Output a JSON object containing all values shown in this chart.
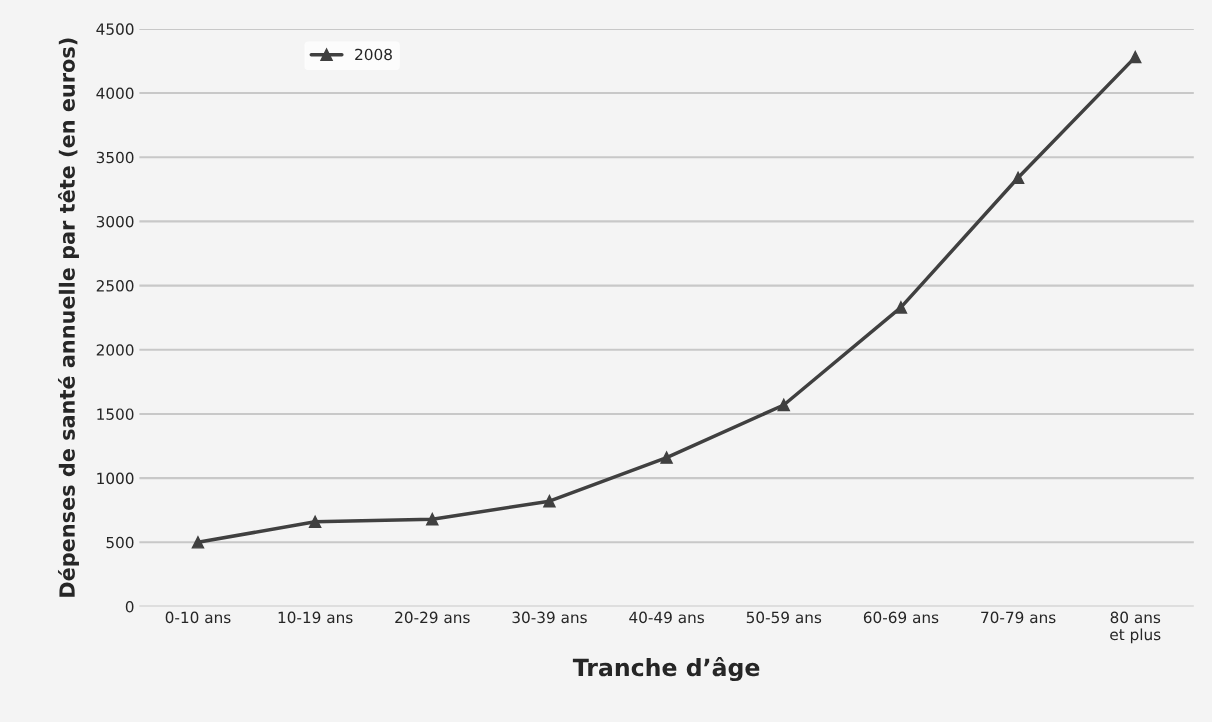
{
  "chart_data": {
    "type": "line",
    "xlabel": "Tranche d’âge",
    "ylabel": "Dépenses de santé annuelle par tête (en euros)",
    "categories": [
      "0-10 ans",
      "10-19 ans",
      "20-29 ans",
      "30-39 ans",
      "40-49 ans",
      "50-59 ans",
      "60-69 ans",
      "70-79 ans",
      "80 ans\net plus"
    ],
    "series": [
      {
        "name": "2008",
        "color": "#404040",
        "values": [
          500,
          660,
          680,
          820,
          1160,
          1570,
          2330,
          3340,
          4280
        ]
      }
    ],
    "ylim": [
      0,
      4500
    ],
    "yticks": [
      0,
      500,
      1000,
      1500,
      2000,
      2500,
      3000,
      3500,
      4000,
      4500
    ],
    "grid": "y",
    "legend": "top left",
    "marker": "triangle",
    "line_style": "solid"
  }
}
